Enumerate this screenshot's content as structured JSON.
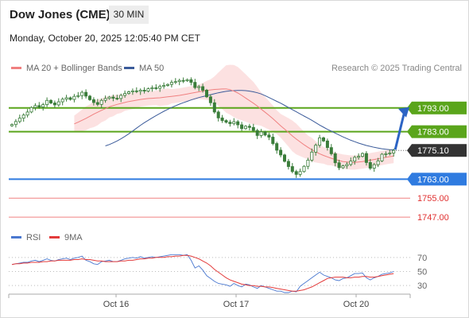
{
  "header": {
    "symbol": "Dow Jones (CME)",
    "interval": "30 MIN",
    "datetime": "Monday, October 20, 2025 12:05:40 PM CET",
    "credit": "Research © 2025 Trading Central"
  },
  "legend": {
    "ma20_label": "MA 20 + Bollinger Bands",
    "ma50_label": "MA 50",
    "rsi_label": "RSI",
    "ma9_label": "9MA"
  },
  "colors": {
    "candle": "#3a7d3a",
    "ma20": "#f08080",
    "ma50": "#3b5b9a",
    "band": "#fcdcdc",
    "green_level": "#5aa51b",
    "blue_level": "#2f7be0",
    "red_level": "#f08080",
    "current": "#333333",
    "rsi": "#4a78d0",
    "rsi_ma": "#e33b3b",
    "arrow": "#2c64c4"
  },
  "chart_data": [
    {
      "type": "candlestick",
      "x_tick_labels": [
        "Oct 16",
        "Oct 17",
        "Oct 20"
      ],
      "ylim": [
        1743,
        1805
      ],
      "current_price": 1775.1,
      "levels": [
        {
          "value": 1793.0,
          "label": "1793.00",
          "kind": "resistance",
          "color": "#5aa51b"
        },
        {
          "value": 1783.0,
          "label": "1783.00",
          "kind": "resistance",
          "color": "#5aa51b"
        },
        {
          "value": 1763.0,
          "label": "1763.00",
          "kind": "pivot",
          "color": "#2f7be0"
        },
        {
          "value": 1755.0,
          "label": "1755.00",
          "kind": "support",
          "color": "#f08080"
        },
        {
          "value": 1747.0,
          "label": "1747.00",
          "kind": "support",
          "color": "#f08080"
        }
      ],
      "closes": [
        1786.0,
        1787.3,
        1788.7,
        1790.0,
        1791.3,
        1793.2,
        1794.0,
        1793.4,
        1794.4,
        1796.2,
        1795.1,
        1794.3,
        1795.6,
        1796.7,
        1797.3,
        1796.6,
        1797.9,
        1798.2,
        1799.6,
        1798.0,
        1796.5,
        1795.3,
        1794.5,
        1796.2,
        1797.0,
        1797.6,
        1797.1,
        1797.0,
        1798.3,
        1799.1,
        1799.8,
        1800.2,
        1800.0,
        1800.5,
        1800.1,
        1801.1,
        1801.5,
        1801.3,
        1802.1,
        1802.5,
        1802.9,
        1803.8,
        1804.1,
        1804.6,
        1804.5,
        1804.9,
        1803.8,
        1801.6,
        1802.0,
        1800.5,
        1797.7,
        1795.2,
        1791.3,
        1788.8,
        1787.7,
        1787.0,
        1786.4,
        1787.2,
        1785.9,
        1784.3,
        1785.3,
        1784.8,
        1783.5,
        1781.4,
        1782.9,
        1781.6,
        1780.7,
        1778.0,
        1775.2,
        1773.2,
        1770.5,
        1768.3,
        1766.2,
        1765.0,
        1766.2,
        1768.4,
        1771.0,
        1774.4,
        1777.3,
        1780.4,
        1779.1,
        1776.3,
        1773.7,
        1769.9,
        1767.8,
        1768.6,
        1769.2,
        1770.6,
        1772.2,
        1772.6,
        1773.8,
        1770.0,
        1767.6,
        1769.1,
        1770.7,
        1773.5,
        1773.7,
        1774.0,
        1775.1
      ],
      "ma20": [
        1786.3,
        1787.0,
        1787.8,
        1788.6,
        1789.5,
        1790.4,
        1791.2,
        1792.0,
        1792.7,
        1793.5,
        1794.0,
        1794.5,
        1794.9,
        1795.3,
        1795.7,
        1796.0,
        1796.3,
        1796.6,
        1796.8,
        1797.0,
        1797.1,
        1797.2,
        1797.3,
        1797.5,
        1797.7,
        1797.9,
        1798.1,
        1798.3,
        1798.6,
        1798.9,
        1799.2,
        1799.5,
        1799.8,
        1800.1,
        1800.4,
        1800.6,
        1800.8,
        1800.9,
        1801.0,
        1801.0,
        1800.7,
        1800.1,
        1799.3,
        1798.3,
        1797.2,
        1796.1,
        1795.0,
        1793.8,
        1792.5,
        1791.2,
        1789.9,
        1788.5,
        1787.0,
        1785.5,
        1784.1,
        1782.7,
        1781.2,
        1779.9,
        1778.7,
        1777.5,
        1776.4,
        1775.4,
        1774.5,
        1773.7,
        1773.0,
        1772.4,
        1771.8,
        1771.3,
        1770.8,
        1770.4,
        1770.2,
        1770.0,
        1770.0,
        1770.2,
        1770.4,
        1770.7,
        1771.0,
        1771.3,
        1771.6,
        1771.9,
        1772.2,
        1772.5,
        1772.7
      ],
      "ma50": [
        1777.0,
        1777.6,
        1778.3,
        1779.1,
        1780.0,
        1781.0,
        1782.1,
        1783.3,
        1784.5,
        1785.7,
        1786.8,
        1787.8,
        1788.8,
        1789.8,
        1790.7,
        1791.6,
        1792.4,
        1793.2,
        1793.9,
        1794.6,
        1795.2,
        1795.8,
        1796.4,
        1796.9,
        1797.4,
        1797.8,
        1798.2,
        1798.6,
        1799.0,
        1799.4,
        1799.7,
        1800.0,
        1800.2,
        1800.3,
        1800.4,
        1800.4,
        1800.3,
        1800.1,
        1799.8,
        1799.4,
        1798.9,
        1798.2,
        1797.4,
        1796.6,
        1795.8,
        1795.0,
        1794.1,
        1793.2,
        1792.3,
        1791.4,
        1790.5,
        1789.6,
        1788.7,
        1787.8,
        1786.8,
        1785.8,
        1784.9,
        1784.0,
        1783.2,
        1782.4,
        1781.6,
        1780.8,
        1780.1,
        1779.4,
        1778.8,
        1778.2,
        1777.7,
        1777.2,
        1776.8,
        1776.4,
        1776.1,
        1775.8,
        1775.6,
        1775.4,
        1775.3
      ],
      "band_halfwidth": [
        3.5,
        4.0,
        4.5,
        5.0,
        5.0,
        5.5,
        5.5,
        5.0,
        5.0,
        4.5,
        4.5,
        4.0,
        4.0,
        3.5,
        3.5,
        3.5,
        3.5,
        3.0,
        3.0,
        3.0,
        3.0,
        3.0,
        3.5,
        3.5,
        3.5,
        3.0,
        3.0,
        3.0,
        3.0,
        3.0,
        3.0,
        3.0,
        3.0,
        3.5,
        4.0,
        4.5,
        5.5,
        7.0,
        8.5,
        10.0,
        10.5,
        11.0,
        11.0,
        10.5,
        10.0,
        9.5,
        9.0,
        8.0,
        7.0,
        6.5,
        6.0,
        5.5,
        5.0,
        5.0,
        5.5,
        6.0,
        6.5,
        6.5,
        6.0,
        5.5,
        5.0,
        5.0,
        4.5,
        4.0,
        3.5,
        3.5,
        3.0,
        3.0,
        3.0,
        3.0,
        3.0,
        3.0,
        3.0,
        3.0,
        3.0,
        3.0,
        3.0,
        3.0,
        3.0,
        3.0,
        3.0,
        3.0,
        3.0
      ]
    },
    {
      "type": "line",
      "name": "RSI",
      "ylim": [
        20,
        80
      ],
      "y_tick_labels": [
        "70",
        "50",
        "30"
      ],
      "rsi": [
        60,
        61,
        62,
        63,
        63,
        65,
        66,
        64,
        66,
        68,
        66,
        65,
        67,
        68,
        69,
        67,
        69,
        70,
        72,
        66,
        64,
        61,
        60,
        64,
        65,
        66,
        64,
        64,
        66,
        68,
        69,
        70,
        69,
        71,
        69,
        70,
        71,
        70,
        71,
        72,
        73,
        74,
        74,
        74,
        73,
        74,
        66,
        55,
        58,
        52,
        44,
        40,
        36,
        33,
        32,
        31,
        29,
        33,
        30,
        28,
        32,
        31,
        28,
        26,
        30,
        28,
        26,
        24,
        22,
        22,
        20,
        20,
        22,
        21,
        29,
        33,
        37,
        41,
        45,
        49,
        45,
        43,
        41,
        38,
        37,
        40,
        41,
        44,
        47,
        47,
        48,
        41,
        38,
        41,
        43,
        46,
        47,
        48,
        50
      ],
      "ma9": [
        60,
        61,
        61,
        62,
        62,
        63,
        63,
        63,
        64,
        64,
        65,
        65,
        66,
        66,
        66,
        66,
        67,
        67,
        68,
        67,
        67,
        66,
        65,
        65,
        64,
        64,
        64,
        64,
        65,
        65,
        66,
        66,
        67,
        68,
        68,
        69,
        69,
        70,
        70,
        70,
        71,
        71,
        72,
        72,
        73,
        73,
        72,
        70,
        68,
        65,
        62,
        58,
        53,
        49,
        45,
        41,
        38,
        36,
        34,
        32,
        31,
        30,
        30,
        29,
        29,
        28,
        28,
        27,
        26,
        25,
        24,
        23,
        22,
        22,
        23,
        24,
        26,
        28,
        31,
        34,
        37,
        40,
        41,
        42,
        42,
        42,
        41,
        41,
        42,
        42,
        43,
        43,
        42,
        42,
        43,
        44,
        45,
        46,
        47
      ]
    }
  ]
}
